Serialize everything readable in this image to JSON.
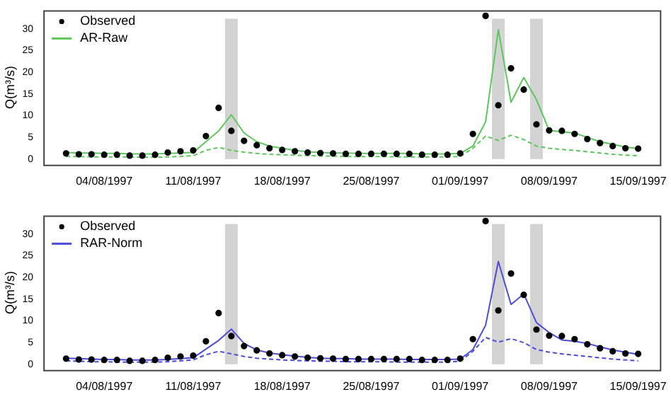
{
  "chart_data": [
    {
      "type": "line",
      "ylabel": "Q(m³/s)",
      "grid": false,
      "legend": "top left",
      "x": [
        "1997-08-01",
        "1997-08-02",
        "1997-08-03",
        "1997-08-04",
        "1997-08-05",
        "1997-08-06",
        "1997-08-07",
        "1997-08-08",
        "1997-08-09",
        "1997-08-10",
        "1997-08-11",
        "1997-08-12",
        "1997-08-13",
        "1997-08-14",
        "1997-08-15",
        "1997-08-16",
        "1997-08-17",
        "1997-08-18",
        "1997-08-19",
        "1997-08-20",
        "1997-08-21",
        "1997-08-22",
        "1997-08-23",
        "1997-08-24",
        "1997-08-25",
        "1997-08-26",
        "1997-08-27",
        "1997-08-28",
        "1997-08-29",
        "1997-08-30",
        "1997-08-31",
        "1997-09-01",
        "1997-09-02",
        "1997-09-03",
        "1997-09-04",
        "1997-09-05",
        "1997-09-06",
        "1997-09-07",
        "1997-09-08",
        "1997-09-09",
        "1997-09-10",
        "1997-09-11",
        "1997-09-12",
        "1997-09-13",
        "1997-09-14",
        "1997-09-15"
      ],
      "xlim": [
        "1997-07-30T05:00",
        "1997-09-16T17:00"
      ],
      "xticks": [
        {
          "value": "1997-08-04",
          "label": "04/08/1997"
        },
        {
          "value": "1997-08-11",
          "label": "11/08/1997"
        },
        {
          "value": "1997-08-18",
          "label": "18/08/1997"
        },
        {
          "value": "1997-08-25",
          "label": "25/08/1997"
        },
        {
          "value": "1997-09-01",
          "label": "01/09/1997"
        },
        {
          "value": "1997-09-08",
          "label": "08/09/1997"
        },
        {
          "value": "1997-09-15",
          "label": "15/09/1997"
        }
      ],
      "ylim": [
        -1.3,
        34.3
      ],
      "yticks": [
        0,
        5,
        10,
        15,
        20,
        25,
        30
      ],
      "bands": [
        {
          "axis": "x",
          "from": "1997-08-13T12:00",
          "to": "1997-08-14T12:00",
          "color": "#d3d3d3"
        },
        {
          "axis": "x",
          "from": "1997-09-03T12:00",
          "to": "1997-09-04T12:00",
          "color": "#d3d3d3"
        },
        {
          "axis": "x",
          "from": "1997-09-06T12:00",
          "to": "1997-09-07T12:00",
          "color": "#d3d3d3"
        }
      ],
      "series": [
        {
          "name": "Observed",
          "type": "scatter",
          "marker": "circle",
          "color": "#000000",
          "values": [
            1.3,
            1.1,
            1.1,
            1.0,
            1.0,
            0.8,
            0.8,
            1.0,
            1.5,
            1.8,
            2.0,
            5.3,
            11.8,
            6.5,
            4.2,
            3.2,
            2.5,
            2.1,
            1.8,
            1.5,
            1.4,
            1.3,
            1.2,
            1.2,
            1.2,
            1.2,
            1.2,
            1.2,
            1.0,
            1.0,
            1.0,
            1.3,
            5.8,
            33,
            12.4,
            20.9,
            16,
            8,
            6.6,
            6.5,
            5.8,
            4.6,
            3.7,
            3.0,
            2.5,
            2.4
          ]
        },
        {
          "name": "AR-Raw",
          "type": "line",
          "line_style": "solid",
          "color": "#5cc85c",
          "values": [
            1.5,
            1.4,
            1.4,
            1.3,
            1.3,
            1.2,
            1.2,
            1.2,
            1.3,
            1.4,
            1.5,
            4.0,
            6.5,
            10.2,
            6.0,
            4.0,
            3.0,
            2.5,
            2.0,
            1.7,
            1.5,
            1.4,
            1.4,
            1.3,
            1.3,
            1.3,
            1.3,
            1.3,
            1.2,
            1.2,
            1.2,
            1.3,
            3.0,
            8.6,
            29.8,
            13.1,
            18.8,
            13.7,
            6.6,
            6.3,
            6.0,
            5.0,
            4.0,
            3.4,
            2.8,
            2.4
          ]
        },
        {
          "type": "line",
          "line_style": "dashed",
          "color": "#5cc85c",
          "values": [
            0.6,
            0.6,
            0.5,
            0.5,
            0.5,
            0.5,
            0.4,
            0.4,
            0.5,
            0.6,
            0.8,
            2.0,
            2.7,
            2.0,
            1.6,
            1.3,
            1.1,
            1.0,
            0.9,
            0.8,
            0.7,
            0.7,
            0.6,
            0.6,
            0.6,
            0.6,
            0.5,
            0.5,
            0.5,
            0.5,
            0.5,
            0.6,
            2.5,
            5.3,
            4.3,
            5.5,
            4.5,
            3.0,
            2.5,
            2.2,
            2.0,
            1.7,
            1.4,
            1.1,
            0.9,
            0.8
          ]
        }
      ]
    },
    {
      "type": "line",
      "ylabel": "Q(m³/s)",
      "grid": false,
      "legend": "top left",
      "x": [
        "1997-08-01",
        "1997-08-02",
        "1997-08-03",
        "1997-08-04",
        "1997-08-05",
        "1997-08-06",
        "1997-08-07",
        "1997-08-08",
        "1997-08-09",
        "1997-08-10",
        "1997-08-11",
        "1997-08-12",
        "1997-08-13",
        "1997-08-14",
        "1997-08-15",
        "1997-08-16",
        "1997-08-17",
        "1997-08-18",
        "1997-08-19",
        "1997-08-20",
        "1997-08-21",
        "1997-08-22",
        "1997-08-23",
        "1997-08-24",
        "1997-08-25",
        "1997-08-26",
        "1997-08-27",
        "1997-08-28",
        "1997-08-29",
        "1997-08-30",
        "1997-08-31",
        "1997-09-01",
        "1997-09-02",
        "1997-09-03",
        "1997-09-04",
        "1997-09-05",
        "1997-09-06",
        "1997-09-07",
        "1997-09-08",
        "1997-09-09",
        "1997-09-10",
        "1997-09-11",
        "1997-09-12",
        "1997-09-13",
        "1997-09-14",
        "1997-09-15"
      ],
      "xlim": [
        "1997-07-30T05:00",
        "1997-09-16T17:00"
      ],
      "xticks": [
        {
          "value": "1997-08-04",
          "label": "04/08/1997"
        },
        {
          "value": "1997-08-11",
          "label": "11/08/1997"
        },
        {
          "value": "1997-08-18",
          "label": "18/08/1997"
        },
        {
          "value": "1997-08-25",
          "label": "25/08/1997"
        },
        {
          "value": "1997-09-01",
          "label": "01/09/1997"
        },
        {
          "value": "1997-09-08",
          "label": "08/09/1997"
        },
        {
          "value": "1997-09-15",
          "label": "15/09/1997"
        }
      ],
      "ylim": [
        -1.3,
        34.3
      ],
      "yticks": [
        0,
        5,
        10,
        15,
        20,
        25,
        30
      ],
      "bands": [
        {
          "axis": "x",
          "from": "1997-08-13T12:00",
          "to": "1997-08-14T12:00",
          "color": "#d3d3d3"
        },
        {
          "axis": "x",
          "from": "1997-09-03T12:00",
          "to": "1997-09-04T12:00",
          "color": "#d3d3d3"
        },
        {
          "axis": "x",
          "from": "1997-09-06T12:00",
          "to": "1997-09-07T12:00",
          "color": "#d3d3d3"
        }
      ],
      "series": [
        {
          "name": "Observed",
          "type": "scatter",
          "marker": "circle",
          "color": "#000000",
          "values": [
            1.3,
            1.1,
            1.1,
            1.0,
            1.0,
            0.8,
            0.8,
            1.0,
            1.5,
            1.8,
            2.0,
            5.3,
            11.8,
            6.5,
            4.2,
            3.2,
            2.5,
            2.1,
            1.8,
            1.5,
            1.4,
            1.3,
            1.2,
            1.2,
            1.2,
            1.2,
            1.2,
            1.2,
            1.0,
            1.0,
            1.0,
            1.3,
            5.8,
            33,
            12.4,
            20.9,
            16,
            8,
            6.6,
            6.5,
            5.8,
            4.6,
            3.7,
            3.0,
            2.5,
            2.4
          ]
        },
        {
          "name": "RAR-Norm",
          "type": "line",
          "line_style": "solid",
          "color": "#4b4bdc",
          "values": [
            1.4,
            1.3,
            1.2,
            1.1,
            1.1,
            1.0,
            1.0,
            1.0,
            1.1,
            1.3,
            1.5,
            3.5,
            5.5,
            8.1,
            4.8,
            3.3,
            2.6,
            2.2,
            1.9,
            1.6,
            1.4,
            1.3,
            1.3,
            1.2,
            1.2,
            1.2,
            1.2,
            1.1,
            1.1,
            1.1,
            1.1,
            1.2,
            3.4,
            9.0,
            23.7,
            13.8,
            16.2,
            9.6,
            7.3,
            5.6,
            5.3,
            4.8,
            4.0,
            3.3,
            2.8,
            2.3
          ]
        },
        {
          "type": "line",
          "line_style": "dashed",
          "color": "#4b4bdc",
          "values": [
            0.8,
            0.7,
            0.6,
            0.6,
            0.5,
            0.5,
            0.5,
            0.5,
            0.6,
            0.8,
            1.0,
            2.2,
            3.0,
            2.4,
            1.8,
            1.4,
            1.2,
            1.0,
            0.9,
            0.8,
            0.7,
            0.7,
            0.6,
            0.6,
            0.6,
            0.6,
            0.5,
            0.5,
            0.5,
            0.5,
            0.5,
            0.7,
            3.0,
            6.2,
            5.1,
            5.9,
            5.0,
            3.4,
            2.8,
            2.4,
            2.1,
            1.8,
            1.5,
            1.2,
            1.0,
            0.8
          ]
        }
      ]
    }
  ]
}
